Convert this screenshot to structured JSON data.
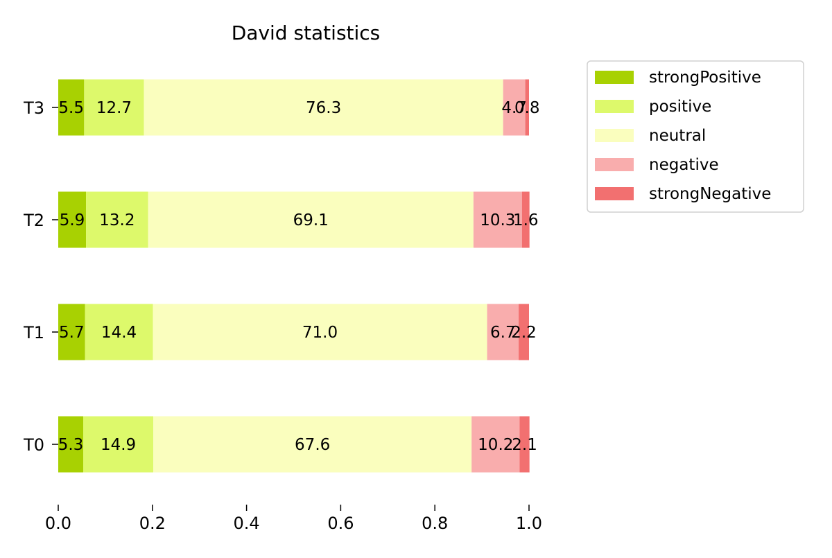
{
  "chart_data": {
    "type": "bar",
    "orientation": "horizontal",
    "stacked": true,
    "title": "David statistics",
    "xlabel": "",
    "ylabel": "",
    "xlim": [
      0.0,
      1.0
    ],
    "x_ticks": [
      "0.0",
      "0.2",
      "0.4",
      "0.6",
      "0.8",
      "1.0"
    ],
    "categories": [
      "T0",
      "T1",
      "T2",
      "T3"
    ],
    "series": [
      {
        "name": "strongPositive",
        "color": "#a8d102",
        "values": [
          0.053,
          0.057,
          0.059,
          0.055
        ],
        "labels": [
          "5.3",
          "5.7",
          "5.9",
          "5.5"
        ]
      },
      {
        "name": "positive",
        "color": "#ddf96b",
        "values": [
          0.149,
          0.144,
          0.132,
          0.127
        ],
        "labels": [
          "14.9",
          "14.4",
          "13.2",
          "12.7"
        ]
      },
      {
        "name": "neutral",
        "color": "#fafebe",
        "values": [
          0.676,
          0.71,
          0.691,
          0.763
        ],
        "labels": [
          "67.6",
          "71.0",
          "69.1",
          "76.3"
        ]
      },
      {
        "name": "negative",
        "color": "#f9adad",
        "values": [
          0.102,
          0.067,
          0.103,
          0.047
        ],
        "labels": [
          "10.2",
          "6.7",
          "10.3",
          "4.7"
        ]
      },
      {
        "name": "strongNegative",
        "color": "#f27070",
        "values": [
          0.021,
          0.022,
          0.016,
          0.008
        ],
        "labels": [
          "2.1",
          "2.2",
          "1.6",
          "0.8"
        ]
      }
    ],
    "grid": false,
    "legend": "upper-right-outside"
  }
}
